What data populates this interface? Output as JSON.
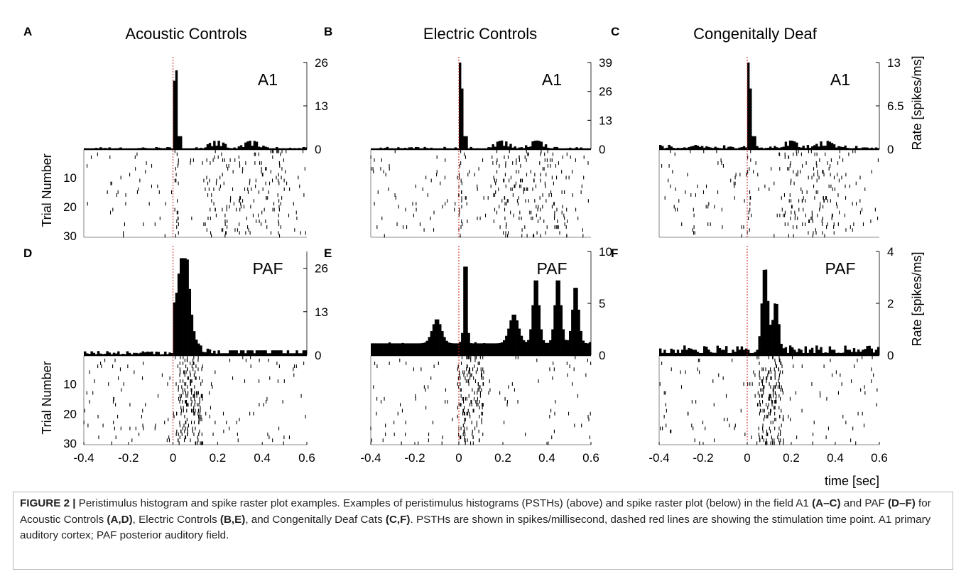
{
  "figure": {
    "columns": [
      {
        "letter": "A",
        "title": "Acoustic Controls",
        "bottom_letter": "D"
      },
      {
        "letter": "B",
        "title": "Electric Controls",
        "bottom_letter": "E"
      },
      {
        "letter": "C",
        "title": "Congenitally Deaf",
        "bottom_letter": "F"
      }
    ],
    "rate_axis_label": "Rate [spikes/ms]",
    "trial_axis_label": "Trial Number",
    "time_axis_label": "time [sec]"
  },
  "chart_data": [
    {
      "panel": "A",
      "type": "bar",
      "field": "A1",
      "group": "Acoustic Controls",
      "xlim": [
        -0.4,
        0.6
      ],
      "ylim": [
        0,
        26
      ],
      "yticks": [
        0,
        13,
        26
      ],
      "stimulus_time": 0,
      "peak": {
        "x": 0.012,
        "y": 26
      },
      "baseline_rate": 0.5,
      "raster": {
        "trials": 30,
        "yticks": [
          10,
          20,
          30
        ]
      }
    },
    {
      "panel": "B",
      "type": "bar",
      "field": "A1",
      "group": "Electric Controls",
      "xlim": [
        -0.4,
        0.6
      ],
      "ylim": [
        0,
        39
      ],
      "yticks": [
        0,
        13,
        26,
        39
      ],
      "stimulus_time": 0,
      "peak": {
        "x": 0.005,
        "y": 39
      },
      "baseline_rate": 0.8,
      "raster": {
        "trials": 30
      }
    },
    {
      "panel": "C",
      "type": "bar",
      "field": "A1",
      "group": "Congenitally Deaf",
      "xlim": [
        -0.4,
        0.6
      ],
      "ylim": [
        0,
        13
      ],
      "yticks": [
        0,
        6.5,
        13
      ],
      "stimulus_time": 0,
      "peak": {
        "x": 0.005,
        "y": 13
      },
      "baseline_rate": 0.5,
      "raster": {
        "trials": 30
      }
    },
    {
      "panel": "D",
      "type": "bar",
      "field": "PAF",
      "group": "Acoustic Controls",
      "xlim": [
        -0.4,
        0.6
      ],
      "ylim": [
        0,
        31
      ],
      "yticks": [
        0,
        13,
        26
      ],
      "stimulus_time": 0,
      "peak": {
        "x": 0.05,
        "y": 29
      },
      "baseline_rate": 1,
      "raster": {
        "trials": 30,
        "yticks": [
          10,
          20,
          30
        ]
      },
      "xticks": [
        -0.4,
        -0.2,
        0,
        0.2,
        0.4,
        0.6
      ]
    },
    {
      "panel": "E",
      "type": "bar",
      "field": "PAF",
      "group": "Electric Controls",
      "xlim": [
        -0.4,
        0.6
      ],
      "ylim": [
        0,
        10
      ],
      "yticks": [
        0,
        5,
        10
      ],
      "stimulus_time": 0,
      "peak": {
        "x": 0.03,
        "y": 9.5
      },
      "baseline_rate": 1,
      "raster": {
        "trials": 30
      },
      "xticks": [
        -0.4,
        -0.2,
        0,
        0.2,
        0.4,
        0.6
      ]
    },
    {
      "panel": "F",
      "type": "bar",
      "field": "PAF",
      "group": "Congenitally Deaf",
      "xlim": [
        -0.4,
        0.6
      ],
      "ylim": [
        0,
        4
      ],
      "yticks": [
        0,
        2,
        4
      ],
      "stimulus_time": 0,
      "peak": {
        "x": 0.08,
        "y": 3.5
      },
      "baseline_rate": 0.3,
      "raster": {
        "trials": 30
      },
      "xticks": [
        -0.4,
        -0.2,
        0,
        0.2,
        0.4,
        0.6
      ]
    }
  ],
  "caption": {
    "label": "FIGURE 2 |",
    "text_1": " Peristimulus histogram and spike raster plot examples. Examples of peristimulus histograms (PSTHs) (above) and spike raster plot (below) in the field A1 ",
    "ref_ac": "(A–C)",
    "text_2": " and PAF ",
    "ref_df": "(D–F)",
    "text_3": " for Acoustic Controls ",
    "ref_ad": "(A,D)",
    "text_4": ", Electric Controls ",
    "ref_be": "(B,E)",
    "text_5": ", and Congenitally Deaf Cats ",
    "ref_cf": "(C,F)",
    "text_6": ". PSTHs are shown in spikes/millisecond, dashed red lines are showing the stimulation time point. A1 primary auditory cortex; PAF posterior auditory field."
  }
}
